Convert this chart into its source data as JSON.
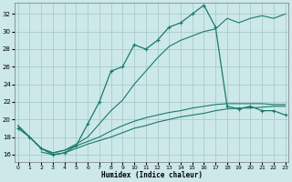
{
  "xlabel": "Humidex (Indice chaleur)",
  "bg_color": "#cce8e8",
  "grid_color": "#aacccc",
  "line_color": "#1a7a6a",
  "xlim": [
    -0.3,
    23.3
  ],
  "ylim": [
    15.2,
    33.3
  ],
  "yticks": [
    16,
    18,
    20,
    22,
    24,
    26,
    28,
    30,
    32
  ],
  "xticks": [
    0,
    1,
    2,
    3,
    4,
    5,
    6,
    7,
    8,
    9,
    10,
    11,
    12,
    13,
    14,
    15,
    16,
    17,
    18,
    19,
    20,
    21,
    22,
    23
  ],
  "main_x": [
    0,
    1,
    2,
    3,
    4,
    5,
    6,
    7,
    8,
    9,
    10,
    11,
    12,
    13,
    14,
    15,
    16,
    17,
    18,
    19,
    20,
    21,
    22,
    23
  ],
  "main_y": [
    19.0,
    18.0,
    16.7,
    16.0,
    16.2,
    17.0,
    19.5,
    22.0,
    25.5,
    26.0,
    28.5,
    28.0,
    29.0,
    30.5,
    31.0,
    32.0,
    33.0,
    30.5,
    21.5,
    21.2,
    21.5,
    21.0,
    21.0,
    20.5
  ],
  "rise_x": [
    0,
    1,
    2,
    3,
    4,
    5,
    6,
    7,
    8,
    9,
    10,
    11,
    12,
    13,
    14,
    15,
    16,
    17,
    18,
    19,
    20,
    21,
    22,
    23
  ],
  "rise_y": [
    19.3,
    18.0,
    16.7,
    16.2,
    16.5,
    17.2,
    18.0,
    19.5,
    21.0,
    22.2,
    24.0,
    25.5,
    27.0,
    28.3,
    29.0,
    29.5,
    30.0,
    30.3,
    31.5,
    31.0,
    31.5,
    31.8,
    31.5,
    32.0
  ],
  "flat1_x": [
    0,
    1,
    2,
    3,
    4,
    5,
    6,
    7,
    8,
    9,
    10,
    11,
    12,
    13,
    14,
    15,
    16,
    17,
    18,
    19,
    20,
    21,
    22,
    23
  ],
  "flat1_y": [
    19.3,
    18.0,
    16.7,
    16.2,
    16.5,
    17.0,
    17.5,
    18.0,
    18.7,
    19.3,
    19.8,
    20.2,
    20.5,
    20.8,
    21.0,
    21.3,
    21.5,
    21.7,
    21.8,
    21.8,
    21.8,
    21.8,
    21.7,
    21.7
  ],
  "flat2_x": [
    2,
    3,
    4,
    5,
    6,
    7,
    8,
    9,
    10,
    11,
    12,
    13,
    14,
    15,
    16,
    17,
    18,
    19,
    20,
    21,
    22,
    23
  ],
  "flat2_y": [
    16.3,
    16.0,
    16.2,
    16.7,
    17.2,
    17.6,
    18.0,
    18.5,
    19.0,
    19.3,
    19.7,
    20.0,
    20.3,
    20.5,
    20.7,
    21.0,
    21.2,
    21.3,
    21.3,
    21.4,
    21.5,
    21.5
  ]
}
